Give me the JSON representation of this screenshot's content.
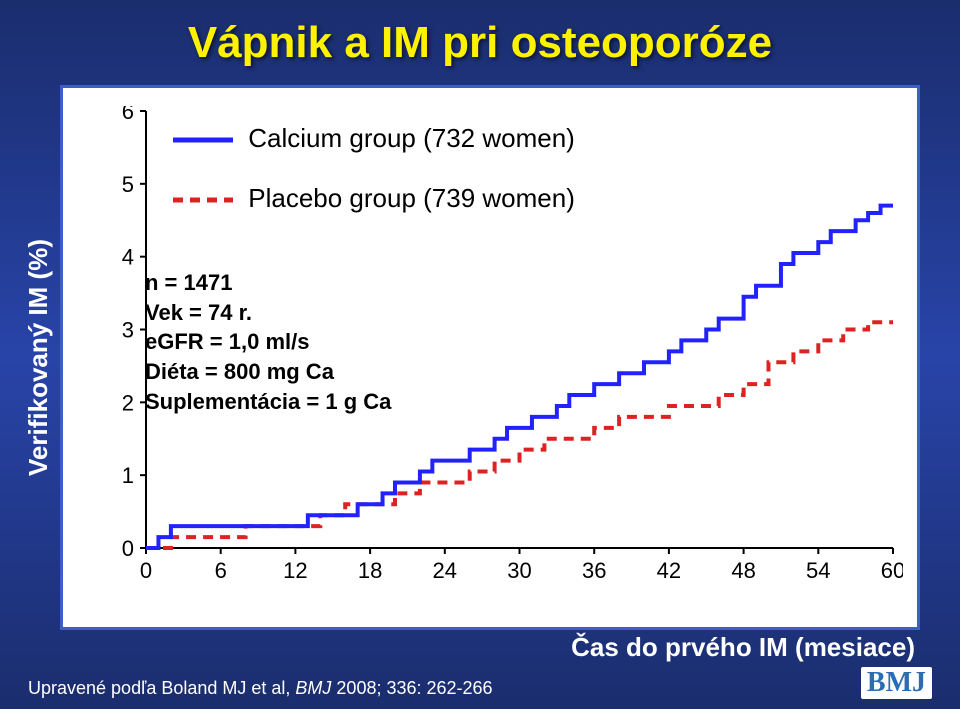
{
  "title": "Vápnik a IM pri osteoporóze",
  "ylabel": "Verifikovaný IM (%)",
  "xlabel": "Čas do prvého IM (mesiace)",
  "citation_prefix": "Upravené podľa Boland MJ et al, ",
  "citation_ital": "BMJ",
  "citation_suffix": "  2008; 336: 262-266",
  "logo": "BMJ",
  "legend": {
    "calcium": "Calcium group (732 women)",
    "placebo": "Placebo group (739 women)"
  },
  "info": {
    "l1": "n = 1471",
    "l2": "Vek = 74 r.",
    "l3": "eGFR = 1,0 ml/s",
    "l4": "Diéta = 800 mg Ca",
    "l5": "Suplementácia = 1 g Ca"
  },
  "chart": {
    "type": "step-line",
    "background_color": "#ffffff",
    "frame_border_color": "#3b5fc6",
    "axis_color": "#000000",
    "tick_fontsize": 22,
    "xlim": [
      0,
      60
    ],
    "ylim": [
      0,
      6
    ],
    "xticks": [
      0,
      6,
      12,
      18,
      24,
      30,
      36,
      42,
      48,
      54,
      60
    ],
    "yticks": [
      0,
      1,
      2,
      3,
      4,
      5,
      6
    ],
    "series": {
      "calcium": {
        "color": "#2222ff",
        "width": 4,
        "dash": "none",
        "points": [
          [
            0,
            0
          ],
          [
            1,
            0.15
          ],
          [
            2,
            0.3
          ],
          [
            3,
            0.3
          ],
          [
            5,
            0.3
          ],
          [
            7,
            0.3
          ],
          [
            8,
            0.3
          ],
          [
            10,
            0.3
          ],
          [
            12,
            0.3
          ],
          [
            13,
            0.45
          ],
          [
            15,
            0.45
          ],
          [
            17,
            0.6
          ],
          [
            19,
            0.75
          ],
          [
            20,
            0.9
          ],
          [
            22,
            1.05
          ],
          [
            23,
            1.2
          ],
          [
            25,
            1.2
          ],
          [
            26,
            1.35
          ],
          [
            28,
            1.5
          ],
          [
            29,
            1.65
          ],
          [
            31,
            1.8
          ],
          [
            33,
            1.95
          ],
          [
            34,
            2.1
          ],
          [
            36,
            2.25
          ],
          [
            38,
            2.4
          ],
          [
            40,
            2.55
          ],
          [
            42,
            2.7
          ],
          [
            43,
            2.85
          ],
          [
            45,
            3.0
          ],
          [
            46,
            3.15
          ],
          [
            48,
            3.45
          ],
          [
            49,
            3.6
          ],
          [
            51,
            3.9
          ],
          [
            52,
            4.05
          ],
          [
            54,
            4.2
          ],
          [
            55,
            4.35
          ],
          [
            57,
            4.5
          ],
          [
            58,
            4.6
          ],
          [
            59,
            4.7
          ],
          [
            60,
            4.7
          ]
        ]
      },
      "placebo": {
        "color": "#dd2222",
        "width": 4,
        "dash": "10,7",
        "points": [
          [
            0,
            0
          ],
          [
            2,
            0.15
          ],
          [
            4,
            0.15
          ],
          [
            6,
            0.15
          ],
          [
            8,
            0.3
          ],
          [
            10,
            0.3
          ],
          [
            12,
            0.3
          ],
          [
            14,
            0.45
          ],
          [
            16,
            0.6
          ],
          [
            18,
            0.6
          ],
          [
            20,
            0.75
          ],
          [
            22,
            0.9
          ],
          [
            24,
            0.9
          ],
          [
            26,
            1.05
          ],
          [
            28,
            1.2
          ],
          [
            30,
            1.35
          ],
          [
            32,
            1.5
          ],
          [
            34,
            1.5
          ],
          [
            36,
            1.65
          ],
          [
            38,
            1.8
          ],
          [
            40,
            1.8
          ],
          [
            42,
            1.95
          ],
          [
            44,
            1.95
          ],
          [
            46,
            2.1
          ],
          [
            48,
            2.25
          ],
          [
            50,
            2.55
          ],
          [
            52,
            2.7
          ],
          [
            54,
            2.85
          ],
          [
            56,
            3.0
          ],
          [
            58,
            3.1
          ],
          [
            60,
            3.1
          ]
        ]
      }
    }
  }
}
